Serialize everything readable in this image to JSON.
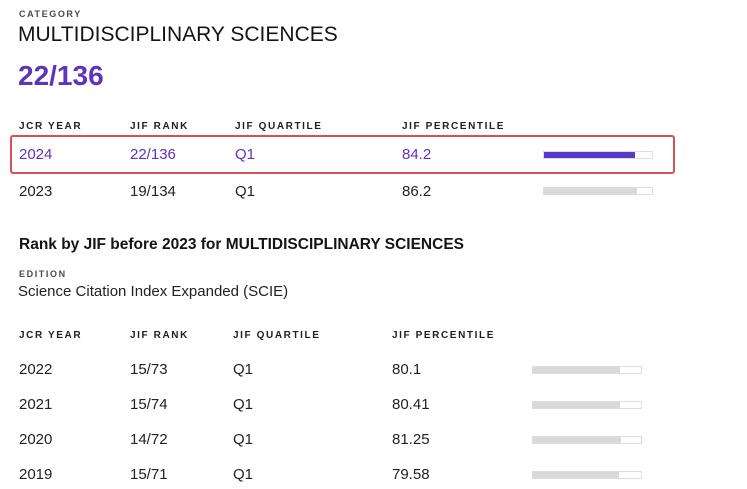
{
  "category": {
    "label": "CATEGORY",
    "name": "MULTIDISCIPLINARY SCIENCES",
    "current_rank": "22/136",
    "selected_year": "2024"
  },
  "recent_table": {
    "headers": [
      "JCR YEAR",
      "JIF RANK",
      "JIF QUARTILE",
      "JIF PERCENTILE"
    ],
    "rows": [
      {
        "year": "2024",
        "rank": "22/136",
        "quartile": "Q1",
        "percentile": "84.2"
      },
      {
        "year": "2023",
        "rank": "19/134",
        "quartile": "Q1",
        "percentile": "86.2"
      }
    ]
  },
  "history_section": {
    "title": "Rank by JIF before 2023 for MULTIDISCIPLINARY SCIENCES",
    "edition_label": "EDITION",
    "edition_name": "Science Citation Index Expanded (SCIE)"
  },
  "history_table": {
    "headers": [
      "JCR YEAR",
      "JIF RANK",
      "JIF QUARTILE",
      "JIF PERCENTILE"
    ],
    "rows": [
      {
        "year": "2022",
        "rank": "15/73",
        "quartile": "Q1",
        "percentile": "80.1"
      },
      {
        "year": "2021",
        "rank": "15/74",
        "quartile": "Q1",
        "percentile": "80.41"
      },
      {
        "year": "2020",
        "rank": "14/72",
        "quartile": "Q1",
        "percentile": "81.25"
      },
      {
        "year": "2019",
        "rank": "15/71",
        "quartile": "Q1",
        "percentile": "79.58"
      }
    ]
  },
  "colors": {
    "accent_purple": "#5e33bf",
    "bar_purple": "#5639c8",
    "highlight_red": "#d65158",
    "bar_gray": "#d9d9d9"
  }
}
